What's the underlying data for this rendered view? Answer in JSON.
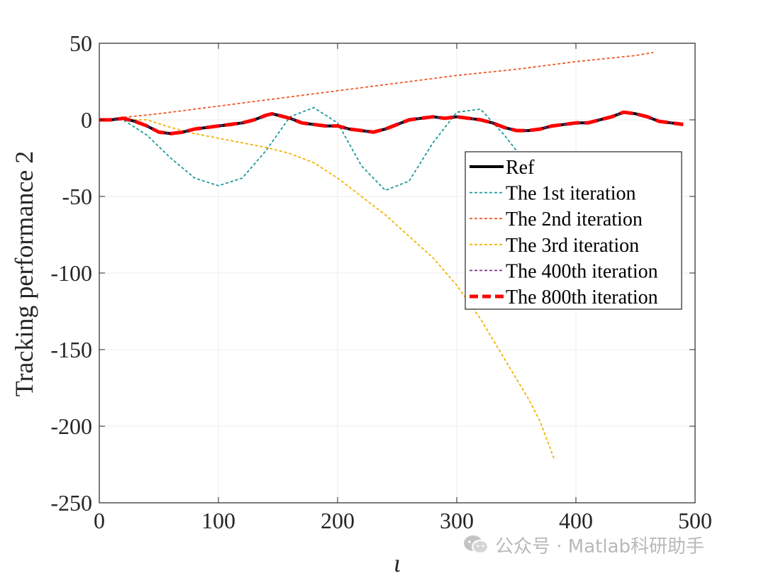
{
  "chart_data": {
    "type": "line",
    "title": "",
    "xlabel": "ι",
    "ylabel": "Tracking performance 2",
    "xlim": [
      0,
      500
    ],
    "ylim": [
      -250,
      50
    ],
    "xticks": [
      0,
      100,
      200,
      300,
      400,
      500
    ],
    "yticks": [
      50,
      0,
      -50,
      -100,
      -150,
      -200,
      -250
    ],
    "grid": true,
    "legend_position": "right-inside",
    "legend": [
      "Ref",
      "The 1st iteration",
      "The 2nd iteration",
      "The 3rd iteration",
      "The 400th iteration",
      "The 800th iteration"
    ],
    "series": [
      {
        "name": "Ref",
        "color": "#000000",
        "style": "solid",
        "x": [
          0,
          10,
          20,
          30,
          40,
          50,
          60,
          70,
          80,
          90,
          100,
          110,
          120,
          130,
          140,
          145,
          150,
          160,
          170,
          180,
          190,
          200,
          210,
          220,
          230,
          240,
          250,
          260,
          270,
          280,
          290,
          300,
          310,
          320,
          330,
          340,
          350,
          360,
          370,
          380,
          390,
          400,
          410,
          420,
          430,
          440,
          450,
          460,
          470,
          480,
          490
        ],
        "y": [
          0,
          0,
          1,
          -1,
          -4,
          -8,
          -9,
          -8,
          -6,
          -5,
          -4,
          -3,
          -2,
          0,
          3,
          4,
          3,
          1,
          -2,
          -3,
          -4,
          -4,
          -6,
          -7,
          -8,
          -6,
          -3,
          0,
          1,
          2,
          1,
          2,
          1,
          0,
          -2,
          -5,
          -7,
          -7,
          -6,
          -4,
          -3,
          -2,
          -2,
          0,
          2,
          5,
          4,
          2,
          -1,
          -2,
          -3
        ]
      },
      {
        "name": "The 1st iteration",
        "color": "#1a9a9a",
        "style": "dotted",
        "x": [
          0,
          20,
          40,
          60,
          80,
          100,
          120,
          140,
          160,
          180,
          200,
          220,
          240,
          260,
          280,
          300,
          320,
          340,
          352
        ],
        "y": [
          0,
          0,
          -10,
          -25,
          -38,
          -43,
          -38,
          -20,
          2,
          8,
          -2,
          -30,
          -46,
          -40,
          -15,
          5,
          7,
          -10,
          -22
        ]
      },
      {
        "name": "The 2nd iteration",
        "color": "#f05a28",
        "style": "dotted",
        "x": [
          0,
          50,
          100,
          150,
          200,
          250,
          300,
          350,
          400,
          450,
          465
        ],
        "y": [
          0,
          4,
          9,
          14,
          19,
          24,
          29,
          33,
          38,
          42,
          44
        ]
      },
      {
        "name": "The 3rd iteration",
        "color": "#f0b400",
        "style": "dotted",
        "x": [
          0,
          40,
          60,
          80,
          100,
          120,
          140,
          160,
          180,
          200,
          220,
          240,
          260,
          280,
          300,
          320,
          340,
          360,
          370,
          382
        ],
        "y": [
          0,
          0,
          -5,
          -9,
          -12,
          -15,
          -18,
          -22,
          -28,
          -38,
          -50,
          -62,
          -76,
          -90,
          -108,
          -130,
          -156,
          -182,
          -197,
          -222
        ]
      },
      {
        "name": "The 400th iteration",
        "color": "#7e2f8e",
        "style": "dotted",
        "x": [
          0,
          10,
          20,
          30,
          40,
          50,
          60,
          70,
          80,
          90,
          100,
          110,
          120,
          130,
          140,
          145,
          150,
          160,
          170,
          180,
          190,
          200,
          210,
          220,
          230,
          240,
          250,
          260,
          270,
          280,
          290,
          300,
          310,
          320,
          330,
          340,
          350,
          360,
          370,
          380,
          390,
          400,
          410,
          420,
          430,
          440,
          450,
          460,
          470,
          480,
          490
        ],
        "y": [
          0,
          0,
          1,
          -1,
          -4,
          -8,
          -9,
          -8,
          -6,
          -5,
          -4,
          -3,
          -2,
          0,
          3,
          4,
          3,
          1,
          -2,
          -3,
          -4,
          -4,
          -6,
          -7,
          -8,
          -6,
          -3,
          0,
          1,
          2,
          1,
          2,
          1,
          0,
          -2,
          -5,
          -7,
          -7,
          -6,
          -4,
          -3,
          -2,
          -2,
          0,
          2,
          5,
          4,
          2,
          -1,
          -2,
          -3
        ]
      },
      {
        "name": "The 800th iteration",
        "color": "#ff0000",
        "style": "dashed",
        "x": [
          0,
          10,
          20,
          30,
          40,
          50,
          60,
          70,
          80,
          90,
          100,
          110,
          120,
          130,
          140,
          145,
          150,
          160,
          170,
          180,
          190,
          200,
          210,
          220,
          230,
          240,
          250,
          260,
          270,
          280,
          290,
          300,
          310,
          320,
          330,
          340,
          350,
          360,
          370,
          380,
          390,
          400,
          410,
          420,
          430,
          440,
          450,
          460,
          470,
          480,
          490
        ],
        "y": [
          0,
          0,
          1,
          -1,
          -4,
          -8,
          -9,
          -8,
          -6,
          -5,
          -4,
          -3,
          -2,
          0,
          3,
          4,
          3,
          1,
          -2,
          -3,
          -4,
          -4,
          -6,
          -7,
          -8,
          -6,
          -3,
          0,
          1,
          2,
          1,
          2,
          1,
          0,
          -2,
          -5,
          -7,
          -7,
          -6,
          -4,
          -3,
          -2,
          -2,
          0,
          2,
          5,
          4,
          2,
          -1,
          -2,
          -3
        ]
      }
    ]
  },
  "watermark": {
    "text": "公众号 · Matlab科研助手",
    "icon": "wechat-icon"
  }
}
